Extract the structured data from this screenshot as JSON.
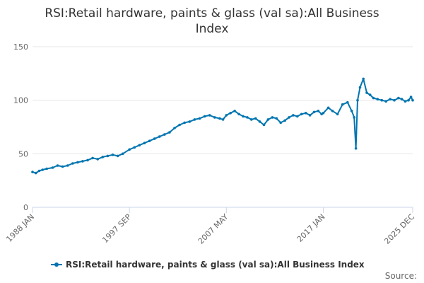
{
  "chart_data": {
    "type": "line",
    "title_lines": [
      "RSI:Retail hardware, paints & glass (val sa):All Business",
      "Index"
    ],
    "xlabel": "",
    "ylabel": "",
    "ylim": [
      0,
      150
    ],
    "y_ticks": [
      0,
      50,
      100,
      150
    ],
    "x_range": [
      "1988 JAN",
      "2025 DEC"
    ],
    "x_ticks": [
      "1988 JAN",
      "1997 SEP",
      "2007 MAY",
      "2017 JAN",
      "2025 DEC"
    ],
    "grid": true,
    "legend_position": "bottom",
    "credit": "Source:",
    "series": [
      {
        "name": "RSI:Retail hardware, paints & glass (val sa):All Business Index",
        "color": "#0075b0",
        "x": [
          "1988 JAN",
          "1988 MAY",
          "1988 SEP",
          "1989 JAN",
          "1989 JUN",
          "1990 JAN",
          "1990 JUL",
          "1991 JAN",
          "1991 JUL",
          "1992 JAN",
          "1992 JUL",
          "1993 JAN",
          "1993 JUL",
          "1994 JAN",
          "1994 JUL",
          "1995 JAN",
          "1995 JUL",
          "1996 JAN",
          "1996 JUL",
          "1997 JAN",
          "1997 SEP",
          "1998 MAR",
          "1998 SEP",
          "1999 MAR",
          "1999 SEP",
          "2000 MAR",
          "2000 SEP",
          "2001 MAR",
          "2001 SEP",
          "2002 MAR",
          "2002 SEP",
          "2003 MAR",
          "2003 SEP",
          "2004 MAR",
          "2004 SEP",
          "2005 MAR",
          "2005 SEP",
          "2006 MAR",
          "2006 SEP",
          "2007 JAN",
          "2007 MAY",
          "2007 OCT",
          "2008 MAR",
          "2008 AUG",
          "2009 JAN",
          "2009 JUN",
          "2009 NOV",
          "2010 APR",
          "2010 SEP",
          "2011 FEB",
          "2011 JUL",
          "2011 DEC",
          "2012 MAY",
          "2012 OCT",
          "2013 MAR",
          "2013 AUG",
          "2014 JAN",
          "2014 JUN",
          "2014 NOV",
          "2015 APR",
          "2015 SEP",
          "2016 FEB",
          "2016 JUL",
          "2016 NOV",
          "2017 JAN",
          "2017 JUL",
          "2017 DEC",
          "2018 JUN",
          "2018 DEC",
          "2019 JUN",
          "2019 NOV",
          "2020 FEB",
          "2020 APR",
          "2020 JUN",
          "2020 SEP",
          "2021 JAN",
          "2021 MAY",
          "2021 SEP",
          "2022 JAN",
          "2022 JUN",
          "2022 NOV",
          "2023 APR",
          "2023 SEP",
          "2024 FEB",
          "2024 JUL",
          "2024 NOV",
          "2025 MAR",
          "2025 JUL",
          "2025 OCT",
          "2025 DEC"
        ],
        "values": [
          33,
          32,
          34,
          35,
          36,
          37,
          39,
          38,
          39,
          41,
          42,
          43,
          44,
          46,
          45,
          47,
          48,
          49,
          48,
          50,
          54,
          56,
          58,
          60,
          62,
          64,
          66,
          68,
          70,
          74,
          77,
          79,
          80,
          82,
          83,
          85,
          86,
          84,
          83,
          82,
          86,
          88,
          90,
          87,
          85,
          84,
          82,
          83,
          80,
          77,
          82,
          84,
          83,
          79,
          81,
          84,
          86,
          85,
          87,
          88,
          86,
          89,
          90,
          87,
          88,
          93,
          90,
          87,
          96,
          98,
          90,
          84,
          55,
          100,
          112,
          120,
          107,
          105,
          102,
          101,
          100,
          99,
          101,
          100,
          102,
          101,
          99,
          100,
          103,
          100
        ]
      }
    ]
  }
}
